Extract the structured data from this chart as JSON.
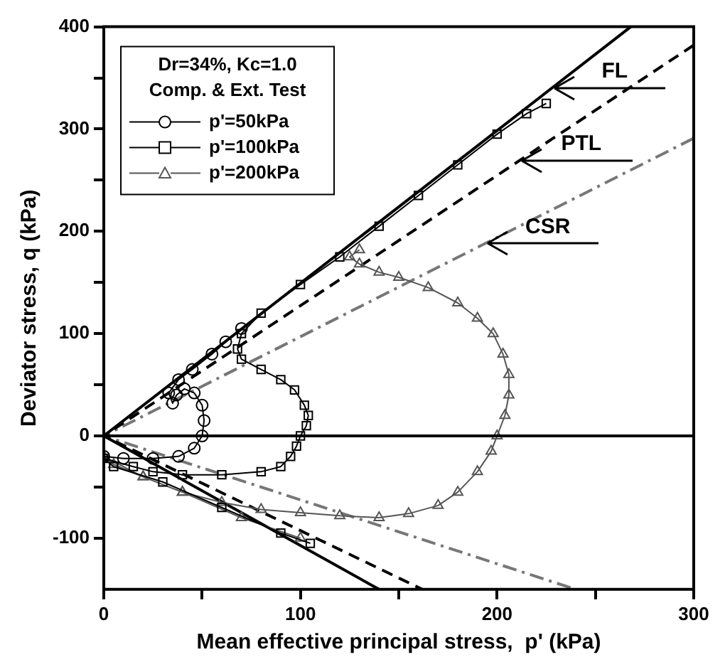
{
  "chart_data": {
    "type": "line",
    "xlabel": "Mean effective principal stress,  p' (kPa)",
    "ylabel": "Deviator stress, q (kPa)",
    "legend_title": "Dr=34%, Kc=1.0\nComp. & Ext. Test",
    "legend": "top left",
    "grid": false,
    "xlim": [
      0,
      300
    ],
    "xticks": [
      0,
      {
        "value": 50,
        "label": null
      },
      100,
      {
        "value": 150,
        "label": null
      },
      200,
      {
        "value": 250,
        "label": null
      },
      300
    ],
    "ylim": [
      -150,
      400
    ],
    "yticks": [
      -100,
      {
        "value": -50,
        "label": null
      },
      0,
      {
        "value": 50,
        "label": null
      },
      100,
      {
        "value": 150,
        "label": null
      },
      200,
      {
        "value": 250,
        "label": null
      },
      300,
      {
        "value": 350,
        "label": null
      },
      400
    ],
    "series": [
      {
        "name": "p'=50kPa",
        "marker": "circle",
        "color": "#000000",
        "x": [
          0,
          10,
          25,
          38,
          46,
          50,
          51,
          50,
          46,
          41,
          37,
          35,
          33,
          38,
          45,
          55,
          62,
          70
        ],
        "values": [
          -20,
          -22,
          -22,
          -20,
          -12,
          0,
          15,
          30,
          42,
          46,
          40,
          32,
          42,
          55,
          65,
          80,
          92,
          105
        ]
      },
      {
        "name": "p'=100kPa",
        "marker": "square",
        "color": "#000000",
        "x": [
          105,
          90,
          60,
          30,
          5,
          0,
          15,
          25,
          40,
          60,
          80,
          90,
          95,
          98,
          100,
          103,
          104,
          102,
          97,
          90,
          80,
          70,
          68,
          70,
          80,
          100,
          120,
          140,
          160,
          180,
          200,
          215,
          225
        ],
        "values": [
          -105,
          -95,
          -70,
          -45,
          -30,
          -22,
          -30,
          -35,
          -38,
          -38,
          -35,
          -30,
          -20,
          -10,
          0,
          10,
          20,
          30,
          45,
          55,
          65,
          75,
          85,
          100,
          120,
          148,
          175,
          205,
          235,
          265,
          295,
          315,
          325
        ]
      },
      {
        "name": "p'=200kPa",
        "marker": "triangle",
        "color": "#555555",
        "x": [
          100,
          70,
          40,
          20,
          5,
          0,
          20,
          40,
          60,
          80,
          100,
          120,
          140,
          155,
          170,
          180,
          190,
          197,
          200,
          204,
          206,
          206,
          203,
          198,
          190,
          180,
          165,
          150,
          140,
          130,
          125,
          130
        ],
        "values": [
          -100,
          -80,
          -55,
          -40,
          -28,
          -20,
          -40,
          -55,
          -65,
          -72,
          -75,
          -78,
          -80,
          -76,
          -68,
          -55,
          -35,
          -15,
          0,
          20,
          40,
          60,
          80,
          100,
          115,
          130,
          145,
          155,
          160,
          168,
          175,
          182
        ]
      },
      {
        "marker": "none",
        "line_style": "solid",
        "color": "#000000",
        "x": [
          268,
          0,
          140
        ],
        "values": [
          400,
          0,
          -150
        ]
      },
      {
        "marker": "none",
        "line_style": "dashed",
        "color": "#000000",
        "x": [
          300,
          0,
          162
        ],
        "values": [
          382,
          0,
          -150
        ]
      },
      {
        "marker": "none",
        "line_style": "dashdot",
        "color": "#777777",
        "x": [
          300,
          0,
          240
        ],
        "values": [
          291,
          0,
          -150
        ]
      }
    ],
    "ref_lines": [
      {
        "axis": "y",
        "value": 0,
        "color": "#000000"
      }
    ],
    "annotations": [
      {
        "text": "FL",
        "x": 228,
        "y": 340
      },
      {
        "text": "PTL",
        "x": 211,
        "y": 269
      },
      {
        "text": "CSR",
        "x": 194,
        "y": 188
      }
    ]
  }
}
